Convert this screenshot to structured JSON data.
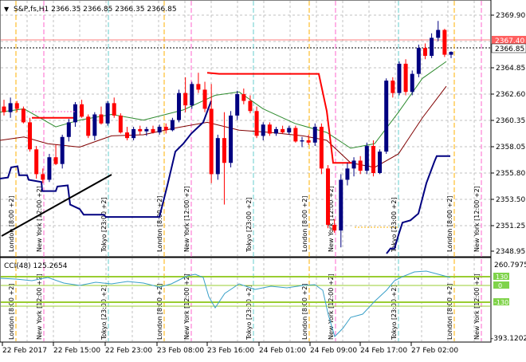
{
  "header": {
    "dropdown_glyph": "▼",
    "symbol_line": "S&P,fs,H1  2366.35 2366.85 2366.35 2366.85"
  },
  "price_axis": {
    "ticks": [
      "2369.90",
      "2367.40",
      "2366.85",
      "2364.85",
      "2362.60",
      "2360.35",
      "2358.05",
      "2355.80",
      "2353.50",
      "2351.25",
      "2348.95"
    ],
    "badge_red": "2367.40",
    "badge_current": "2366.85"
  },
  "cci": {
    "label": "CCI(48) 125.2654",
    "max_label": "260.7975",
    "min_label": "-393.1202",
    "level_pos": "130",
    "level_zero": "0",
    "level_neg": "-130"
  },
  "time_axis": [
    "22 Feb 2017",
    "22 Feb 15:00",
    "22 Feb 23:00",
    "23 Feb 08:00",
    "23 Feb 16:00",
    "24 Feb 01:00",
    "24 Feb 09:00",
    "24 Feb 17:00",
    "27 Feb 02:00"
  ],
  "sessions": [
    "London",
    "New York",
    "Tokyo",
    "London",
    "New York",
    "Tokyo",
    "London",
    "New York",
    "Tokyo",
    "London",
    "New York"
  ],
  "session_times": [
    "[8:00 +2]",
    "[12:00 +2]",
    "[23:00 +2]",
    "[8:00 +2]",
    "[12:00 +2]",
    "[23:00 +2]",
    "[8:00 +2]",
    "[12:00 +2]",
    "[23:00 +2]",
    "[8:00 +2]",
    "[12:00 +2]"
  ],
  "colors": {
    "bull": "#000080",
    "bear": "#ff0000",
    "ma_green": "#2e8b2e",
    "ma_dark": "#800000",
    "cci_line": "#3aa0c8",
    "cci_level": "#9acd32",
    "grid": "#c0c0c0",
    "tokyo_line": "#66cccc",
    "london_line": "#ffb000",
    "ny_line": "#ff66cc"
  }
}
